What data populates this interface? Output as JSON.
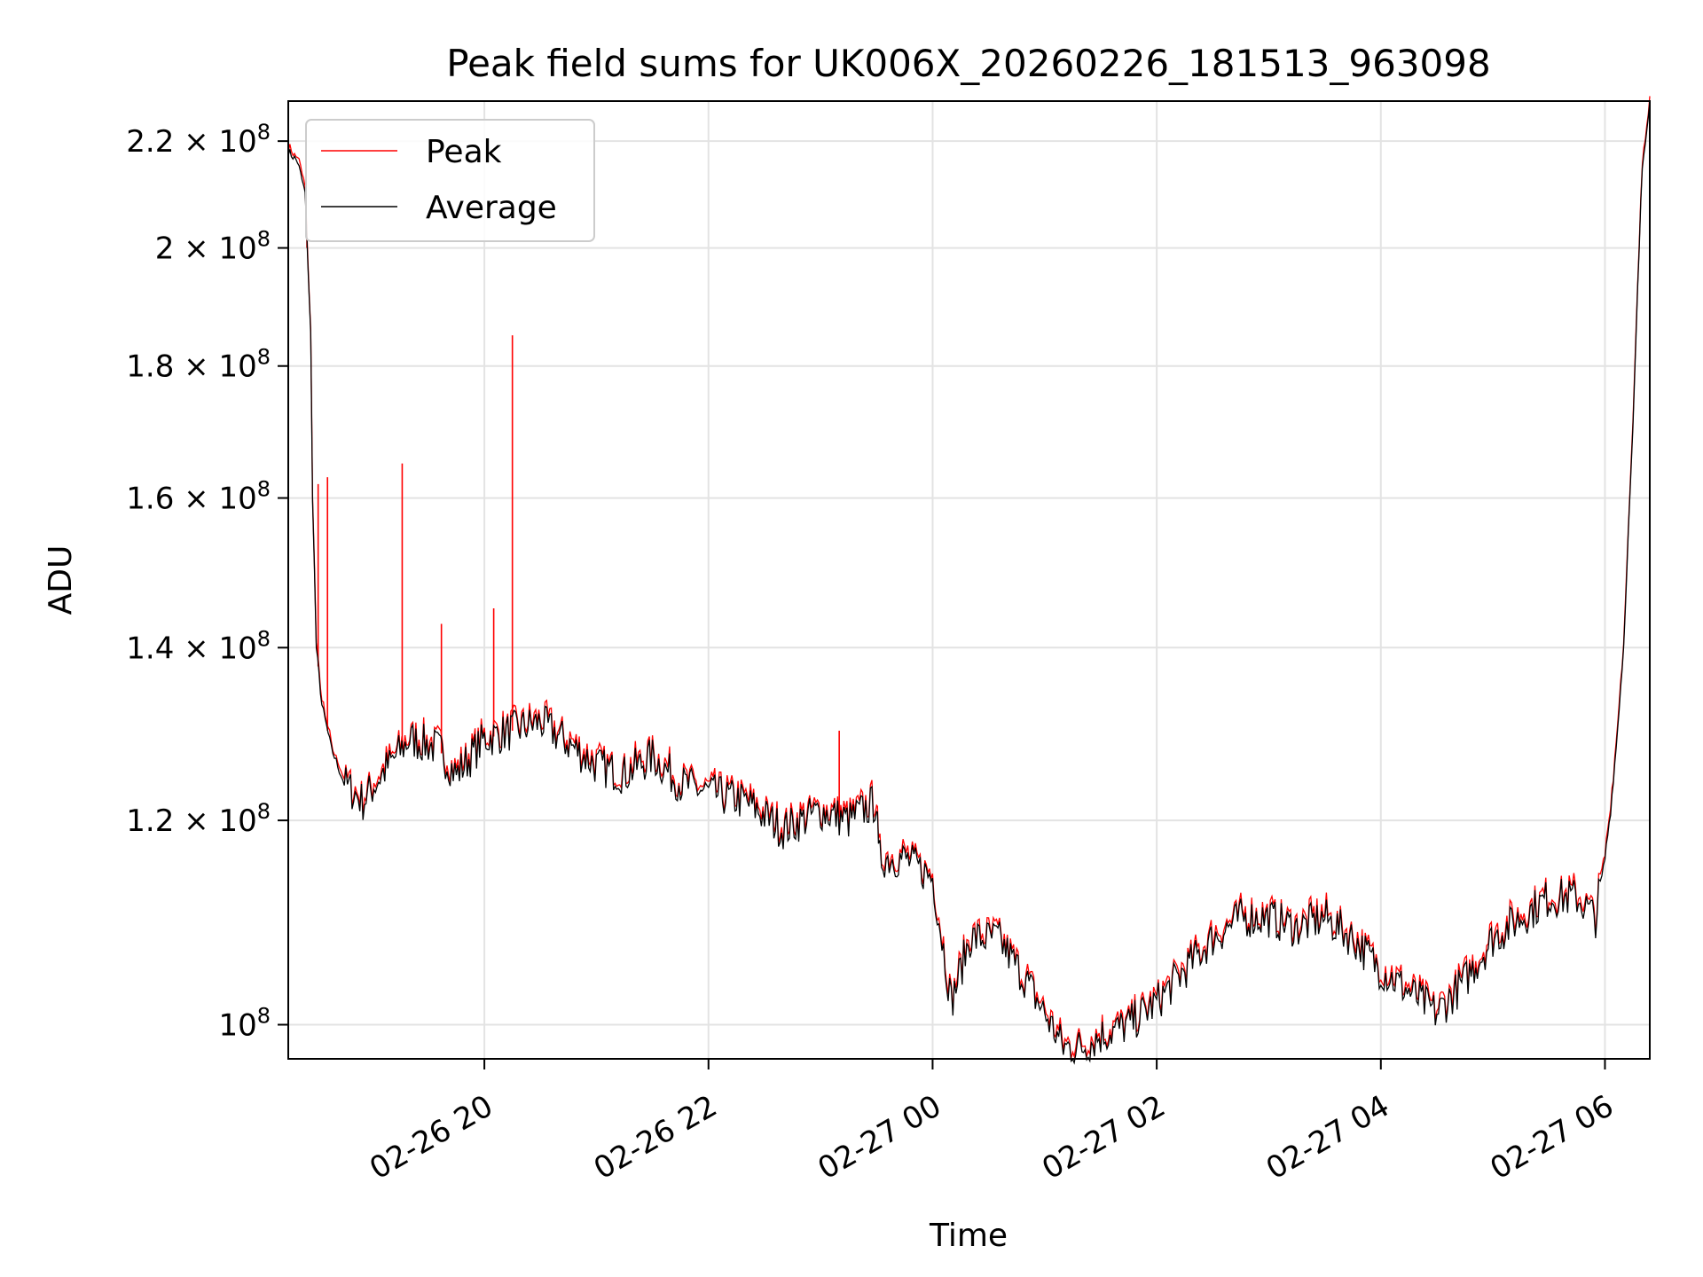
{
  "chart_data": {
    "type": "line",
    "title": "Peak field sums for UK006X_20260226_181513_963098",
    "xlabel": "Time",
    "ylabel": "ADU",
    "yscale": "log",
    "grid": true,
    "legend_position": "top-left",
    "xlim": [
      "2026-02-26 18:15",
      "2026-02-27 06:24"
    ],
    "ylim": [
      97000000,
      228000000
    ],
    "x_ticks": [
      {
        "value": "2026-02-26 20:00",
        "label": "02-26 20"
      },
      {
        "value": "2026-02-26 22:00",
        "label": "02-26 22"
      },
      {
        "value": "2026-02-27 00:00",
        "label": "02-27 00"
      },
      {
        "value": "2026-02-27 02:00",
        "label": "02-27 02"
      },
      {
        "value": "2026-02-27 04:00",
        "label": "02-27 04"
      },
      {
        "value": "2026-02-27 06:00",
        "label": "02-27 06"
      }
    ],
    "y_ticks": [
      {
        "value": 100000000,
        "mantissa": "",
        "base": "10",
        "exp": "8"
      },
      {
        "value": 120000000,
        "mantissa": "1.2",
        "base": "10",
        "exp": "8"
      },
      {
        "value": 140000000,
        "mantissa": "1.4",
        "base": "10",
        "exp": "8"
      },
      {
        "value": 160000000,
        "mantissa": "1.6",
        "base": "10",
        "exp": "8"
      },
      {
        "value": 180000000,
        "mantissa": "1.8",
        "base": "10",
        "exp": "8"
      },
      {
        "value": 200000000,
        "mantissa": "2",
        "base": "10",
        "exp": "8"
      },
      {
        "value": 220000000,
        "mantissa": "2.2",
        "base": "10",
        "exp": "8"
      }
    ],
    "times_note_format": "YYYY-MM-DD HH:MM",
    "series": [
      {
        "name": "Average",
        "color": "#000000",
        "x": [
          "2026-02-26 18:15",
          "2026-02-26 18:20",
          "2026-02-26 18:24",
          "2026-02-26 18:27",
          "2026-02-26 18:28",
          "2026-02-26 18:30",
          "2026-02-26 18:33",
          "2026-02-26 18:38",
          "2026-02-26 18:45",
          "2026-02-26 18:55",
          "2026-02-26 19:05",
          "2026-02-26 19:20",
          "2026-02-26 19:35",
          "2026-02-26 19:45",
          "2026-02-26 20:00",
          "2026-02-26 20:15",
          "2026-02-26 20:30",
          "2026-02-26 21:00",
          "2026-02-26 21:15",
          "2026-02-26 21:30",
          "2026-02-26 21:45",
          "2026-02-26 22:00",
          "2026-02-26 22:20",
          "2026-02-26 22:40",
          "2026-02-26 23:00",
          "2026-02-26 23:15",
          "2026-02-26 23:30",
          "2026-02-26 23:31",
          "2026-02-26 23:45",
          "2026-02-27 00:00",
          "2026-02-27 00:05",
          "2026-02-27 00:10",
          "2026-02-27 00:20",
          "2026-02-27 00:35",
          "2026-02-27 00:50",
          "2026-02-27 01:00",
          "2026-02-27 01:10",
          "2026-02-27 01:20",
          "2026-02-27 01:30",
          "2026-02-27 01:45",
          "2026-02-27 02:00",
          "2026-02-27 02:15",
          "2026-02-27 02:30",
          "2026-02-27 02:45",
          "2026-02-27 03:00",
          "2026-02-27 03:15",
          "2026-02-27 03:30",
          "2026-02-27 03:45",
          "2026-02-27 04:00",
          "2026-02-27 04:15",
          "2026-02-27 04:30",
          "2026-02-27 04:45",
          "2026-02-27 05:00",
          "2026-02-27 05:15",
          "2026-02-27 05:30",
          "2026-02-27 05:45",
          "2026-02-27 05:55",
          "2026-02-27 06:00",
          "2026-02-27 06:03",
          "2026-02-27 06:06",
          "2026-02-27 06:10",
          "2026-02-27 06:15",
          "2026-02-27 06:20",
          "2026-02-27 06:24"
        ],
        "y": [
          218000000,
          216000000,
          210000000,
          185000000,
          160000000,
          140000000,
          133000000,
          128000000,
          124000000,
          122000000,
          125000000,
          129000000,
          128000000,
          125000000,
          129000000,
          130000000,
          131000000,
          126000000,
          125000000,
          127000000,
          124000000,
          123000000,
          122000000,
          119000000,
          121000000,
          120000000,
          122000000,
          116000000,
          116000000,
          114000000,
          108000000,
          102000000,
          108000000,
          108000000,
          104000000,
          101000000,
          98000000,
          98000000,
          99000000,
          100000000,
          102000000,
          105000000,
          108000000,
          110000000,
          110000000,
          109000000,
          110000000,
          108000000,
          105000000,
          103000000,
          101000000,
          104000000,
          108000000,
          110000000,
          112000000,
          112000000,
          110000000,
          116000000,
          121000000,
          128000000,
          140000000,
          170000000,
          215000000,
          228000000
        ]
      },
      {
        "name": "Peak",
        "color": "#ff0000",
        "spikes": [
          {
            "x": "2026-02-26 18:25",
            "y": 200000000
          },
          {
            "x": "2026-02-26 18:31",
            "y": 162000000
          },
          {
            "x": "2026-02-26 18:36",
            "y": 163000000
          },
          {
            "x": "2026-02-26 19:16",
            "y": 165000000
          },
          {
            "x": "2026-02-26 19:37",
            "y": 143000000
          },
          {
            "x": "2026-02-26 20:05",
            "y": 145000000
          },
          {
            "x": "2026-02-26 20:15",
            "y": 185000000
          },
          {
            "x": "2026-02-26 23:10",
            "y": 130000000
          }
        ]
      }
    ]
  }
}
